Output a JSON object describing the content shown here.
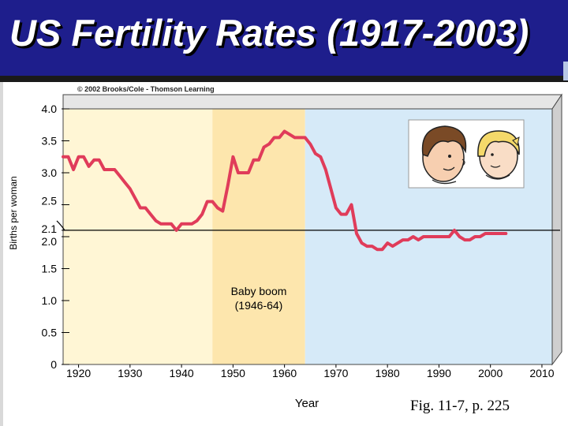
{
  "slide": {
    "title": "US Fertility Rates (1917-2003)",
    "copyright": "© 2002 Brooks/Cole - Thomson Learning",
    "figure_reference": "Fig. 11-7, p. 225"
  },
  "colors": {
    "header_background": "#1e1e8c",
    "period_before": "#fff6d5",
    "period_baby_boom": "#fde6ad",
    "period_after": "#d6eaf8",
    "series_line": "#e03c5a",
    "replacement_line": "#000000"
  },
  "icons": [
    "boy-face-illustration",
    "girl-face-illustration"
  ],
  "chart_data": {
    "type": "line",
    "title": "",
    "xlabel": "Year",
    "ylabel": "Births per woman",
    "xlim": [
      1917,
      2012
    ],
    "ylim": [
      0,
      4.0
    ],
    "x_ticks": [
      "1920",
      "1930",
      "1940",
      "1950",
      "1960",
      "1970",
      "1980",
      "1990",
      "2000",
      "2010"
    ],
    "y_ticks": [
      {
        "value": 0,
        "label": "0"
      },
      {
        "value": 0.5,
        "label": "0.5"
      },
      {
        "value": 1.0,
        "label": "1.0"
      },
      {
        "value": 1.5,
        "label": "1.5"
      },
      {
        "value": 2.0,
        "label": "2.0"
      },
      {
        "value": 2.1,
        "label": "2.1"
      },
      {
        "value": 2.5,
        "label": "2.5"
      },
      {
        "value": 3.0,
        "label": "3.0"
      },
      {
        "value": 3.5,
        "label": "3.5"
      },
      {
        "value": 4.0,
        "label": "4.0"
      }
    ],
    "reference_line": {
      "value": 2.1,
      "label": "2.1"
    },
    "periods": [
      {
        "from": 1917,
        "to": 1946
      },
      {
        "from": 1946,
        "to": 1964,
        "label": "Baby boom\n(1946-64)"
      },
      {
        "from": 1964,
        "to": 2012
      }
    ],
    "annotation": "Baby boom (1946-64)",
    "series": [
      {
        "x": [
          1917,
          1918,
          1919,
          1920,
          1921,
          1922,
          1923,
          1924,
          1925,
          1926,
          1927,
          1928,
          1929,
          1930,
          1931,
          1932,
          1933,
          1934,
          1935,
          1936,
          1937,
          1938,
          1939,
          1940,
          1941,
          1942,
          1943,
          1944,
          1945,
          1946,
          1947,
          1948,
          1949,
          1950,
          1951,
          1952,
          1953,
          1954,
          1955,
          1956,
          1957,
          1958,
          1959,
          1960,
          1961,
          1962,
          1963,
          1964,
          1965,
          1966,
          1967,
          1968,
          1969,
          1970,
          1971,
          1972,
          1973,
          1974,
          1975,
          1976,
          1977,
          1978,
          1979,
          1980,
          1981,
          1982,
          1983,
          1984,
          1985,
          1986,
          1987,
          1988,
          1989,
          1990,
          1991,
          1992,
          1993,
          1994,
          1995,
          1996,
          1997,
          1998,
          1999,
          2000,
          2001,
          2002,
          2003
        ],
        "values": [
          3.25,
          3.25,
          3.05,
          3.25,
          3.25,
          3.1,
          3.2,
          3.2,
          3.05,
          3.05,
          3.05,
          2.95,
          2.85,
          2.75,
          2.6,
          2.45,
          2.45,
          2.35,
          2.25,
          2.2,
          2.2,
          2.2,
          2.1,
          2.2,
          2.2,
          2.2,
          2.25,
          2.35,
          2.55,
          2.55,
          2.45,
          2.4,
          2.8,
          3.25,
          3.0,
          3.0,
          3.0,
          3.2,
          3.2,
          3.4,
          3.45,
          3.55,
          3.55,
          3.65,
          3.6,
          3.55,
          3.55,
          3.55,
          3.45,
          3.3,
          3.25,
          3.05,
          2.75,
          2.45,
          2.35,
          2.35,
          2.5,
          2.05,
          1.9,
          1.85,
          1.85,
          1.8,
          1.8,
          1.9,
          1.85,
          1.9,
          1.95,
          1.95,
          2.0,
          1.95,
          2.0,
          2.0,
          2.0,
          2.0,
          2.0,
          2.0,
          2.1,
          2.0,
          1.95,
          1.95,
          2.0,
          2.0,
          2.05,
          2.05,
          2.05,
          2.05,
          2.05
        ]
      }
    ]
  }
}
